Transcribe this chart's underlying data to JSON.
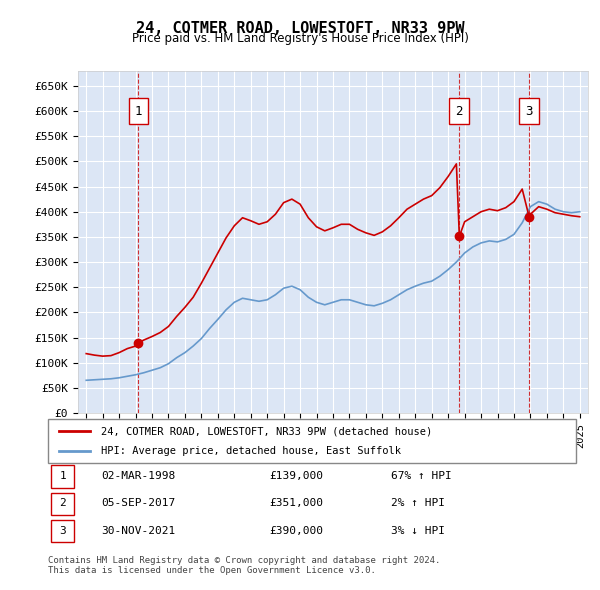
{
  "title": "24, COTMER ROAD, LOWESTOFT, NR33 9PW",
  "subtitle": "Price paid vs. HM Land Registry's House Price Index (HPI)",
  "background_color": "#dce6f5",
  "plot_bg_color": "#dce6f5",
  "ylabel_color": "#222222",
  "ylim": [
    0,
    680000
  ],
  "yticks": [
    0,
    50000,
    100000,
    150000,
    200000,
    250000,
    300000,
    350000,
    400000,
    450000,
    500000,
    550000,
    600000,
    650000
  ],
  "ytick_labels": [
    "£0",
    "£50K",
    "£100K",
    "£150K",
    "£200K",
    "£250K",
    "£300K",
    "£350K",
    "£400K",
    "£450K",
    "£500K",
    "£550K",
    "£600K",
    "£650K"
  ],
  "xlim_start": 1994.5,
  "xlim_end": 2025.5,
  "red_line_color": "#cc0000",
  "blue_line_color": "#6699cc",
  "vline_color": "#cc0000",
  "sale_points": [
    {
      "year": 1998.17,
      "price": 139000,
      "label": "1"
    },
    {
      "year": 2017.68,
      "price": 351000,
      "label": "2"
    },
    {
      "year": 2021.92,
      "price": 390000,
      "label": "3"
    }
  ],
  "legend_entries": [
    {
      "label": "24, COTMER ROAD, LOWESTOFT, NR33 9PW (detached house)",
      "color": "#cc0000"
    },
    {
      "label": "HPI: Average price, detached house, East Suffolk",
      "color": "#6699cc"
    }
  ],
  "table_rows": [
    {
      "num": "1",
      "date": "02-MAR-1998",
      "price": "£139,000",
      "hpi": "67% ↑ HPI"
    },
    {
      "num": "2",
      "date": "05-SEP-2017",
      "price": "£351,000",
      "hpi": "2% ↑ HPI"
    },
    {
      "num": "3",
      "date": "30-NOV-2021",
      "price": "£390,000",
      "hpi": "3% ↓ HPI"
    }
  ],
  "footnote": "Contains HM Land Registry data © Crown copyright and database right 2024.\nThis data is licensed under the Open Government Licence v3.0.",
  "hpi_years": [
    1995,
    1995.5,
    1996,
    1996.5,
    1997,
    1997.5,
    1998,
    1998.5,
    1999,
    1999.5,
    2000,
    2000.5,
    2001,
    2001.5,
    2002,
    2002.5,
    2003,
    2003.5,
    2004,
    2004.5,
    2005,
    2005.5,
    2006,
    2006.5,
    2007,
    2007.5,
    2008,
    2008.5,
    2009,
    2009.5,
    2010,
    2010.5,
    2011,
    2011.5,
    2012,
    2012.5,
    2013,
    2013.5,
    2014,
    2014.5,
    2015,
    2015.5,
    2016,
    2016.5,
    2017,
    2017.5,
    2018,
    2018.5,
    2019,
    2019.5,
    2020,
    2020.5,
    2021,
    2021.5,
    2022,
    2022.5,
    2023,
    2023.5,
    2024,
    2024.5,
    2025
  ],
  "hpi_values": [
    65000,
    66000,
    67000,
    68000,
    70000,
    73000,
    76000,
    80000,
    85000,
    90000,
    98000,
    110000,
    120000,
    133000,
    148000,
    168000,
    186000,
    205000,
    220000,
    228000,
    225000,
    222000,
    225000,
    235000,
    248000,
    252000,
    245000,
    230000,
    220000,
    215000,
    220000,
    225000,
    225000,
    220000,
    215000,
    213000,
    218000,
    225000,
    235000,
    245000,
    252000,
    258000,
    262000,
    272000,
    285000,
    300000,
    318000,
    330000,
    338000,
    342000,
    340000,
    345000,
    355000,
    378000,
    410000,
    420000,
    415000,
    405000,
    400000,
    398000,
    400000
  ],
  "red_years": [
    1995,
    1995.5,
    1996,
    1996.5,
    1997,
    1997.5,
    1998,
    1998.17,
    1998.5,
    1999,
    1999.5,
    2000,
    2000.5,
    2001,
    2001.5,
    2002,
    2002.5,
    2003,
    2003.5,
    2004,
    2004.5,
    2005,
    2005.5,
    2006,
    2006.5,
    2007,
    2007.5,
    2008,
    2008.5,
    2009,
    2009.5,
    2010,
    2010.5,
    2011,
    2011.5,
    2012,
    2012.5,
    2013,
    2013.5,
    2014,
    2014.5,
    2015,
    2015.5,
    2016,
    2016.5,
    2017,
    2017.5,
    2017.68,
    2018,
    2018.5,
    2019,
    2019.5,
    2020,
    2020.5,
    2021,
    2021.5,
    2021.92,
    2022,
    2022.5,
    2023,
    2023.5,
    2024,
    2024.5,
    2025
  ],
  "red_values": [
    118000,
    115000,
    113000,
    114000,
    120000,
    128000,
    133000,
    139000,
    145000,
    152000,
    160000,
    172000,
    192000,
    210000,
    230000,
    258000,
    288000,
    318000,
    348000,
    372000,
    388000,
    382000,
    375000,
    380000,
    395000,
    418000,
    425000,
    415000,
    388000,
    370000,
    362000,
    368000,
    375000,
    375000,
    365000,
    358000,
    353000,
    360000,
    372000,
    388000,
    405000,
    415000,
    425000,
    432000,
    448000,
    470000,
    495000,
    351000,
    380000,
    390000,
    400000,
    405000,
    402000,
    408000,
    420000,
    445000,
    390000,
    395000,
    410000,
    405000,
    398000,
    395000,
    392000,
    390000
  ]
}
